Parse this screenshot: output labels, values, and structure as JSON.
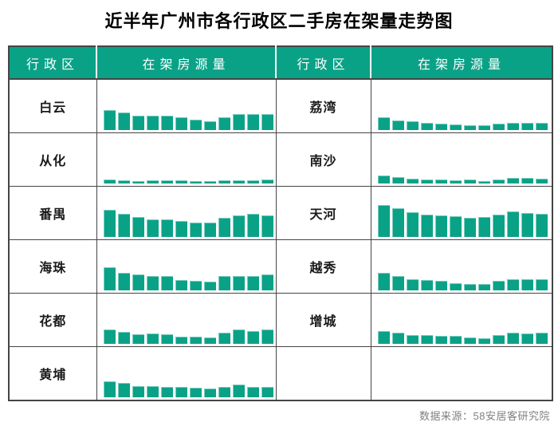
{
  "title": "近半年广州市各行政区二手房在架量走势图",
  "table": {
    "headers": [
      "行政区",
      "在架房源量",
      "行政区",
      "在架房源量"
    ],
    "rows": [
      {
        "left": {
          "district": "白云"
        },
        "right": {
          "district": "荔湾"
        }
      },
      {
        "left": {
          "district": "从化"
        },
        "right": {
          "district": "南沙"
        }
      },
      {
        "left": {
          "district": "番禺"
        },
        "right": {
          "district": "天河"
        }
      },
      {
        "left": {
          "district": "海珠"
        },
        "right": {
          "district": "越秀"
        }
      },
      {
        "left": {
          "district": "花都"
        },
        "right": {
          "district": "增城"
        }
      },
      {
        "left": {
          "district": "黄埔"
        },
        "right": null
      }
    ]
  },
  "footer": {
    "source": "数据来源：58安居客研究院"
  },
  "colors": {
    "accent_teal": "#0aa287",
    "bar_edge_highlight": "#9ed9cb",
    "grid_border": "#454545",
    "footer_text": "#808080",
    "title_text": "#000000",
    "header_text": "#ffffff"
  },
  "chart_data": {
    "type": "bar",
    "title": "近半年广州市各行政区二手房在架量走势图",
    "xlabel": "",
    "ylabel": "在架房源量",
    "x_labels": null,
    "periods": 12,
    "note": "sparkline bar charts, no axes or value labels shown; values are relative heights in % of the tallest bar in the table (天河 first period = 100), common scale across all districts",
    "legend_position": "none",
    "grid": false,
    "series": [
      {
        "name": "白云",
        "values": [
          62,
          54,
          46,
          44,
          44,
          41,
          33,
          28,
          41,
          49,
          49,
          49
        ]
      },
      {
        "name": "从化",
        "values": [
          13,
          10,
          8,
          10,
          10,
          10,
          8,
          8,
          10,
          10,
          10,
          13
        ]
      },
      {
        "name": "番禺",
        "values": [
          85,
          72,
          62,
          56,
          54,
          51,
          46,
          44,
          59,
          67,
          72,
          67
        ]
      },
      {
        "name": "海珠",
        "values": [
          72,
          56,
          51,
          46,
          44,
          33,
          31,
          28,
          44,
          44,
          44,
          49
        ]
      },
      {
        "name": "花都",
        "values": [
          46,
          38,
          31,
          33,
          31,
          23,
          23,
          21,
          36,
          44,
          41,
          46
        ]
      },
      {
        "name": "黄埔",
        "values": [
          49,
          46,
          36,
          36,
          33,
          33,
          31,
          28,
          33,
          41,
          33,
          33
        ]
      },
      {
        "name": "荔湾",
        "values": [
          41,
          31,
          28,
          23,
          21,
          18,
          15,
          15,
          21,
          23,
          23,
          23
        ]
      },
      {
        "name": "南沙",
        "values": [
          26,
          21,
          15,
          13,
          13,
          10,
          13,
          8,
          13,
          18,
          18,
          15
        ]
      },
      {
        "name": "天河",
        "values": [
          100,
          90,
          77,
          69,
          67,
          64,
          59,
          62,
          69,
          79,
          74,
          72
        ]
      },
      {
        "name": "越秀",
        "values": [
          54,
          44,
          36,
          33,
          31,
          23,
          21,
          21,
          31,
          36,
          36,
          36
        ]
      },
      {
        "name": "增城",
        "values": [
          41,
          36,
          28,
          28,
          26,
          26,
          21,
          18,
          28,
          36,
          33,
          36
        ]
      }
    ]
  }
}
